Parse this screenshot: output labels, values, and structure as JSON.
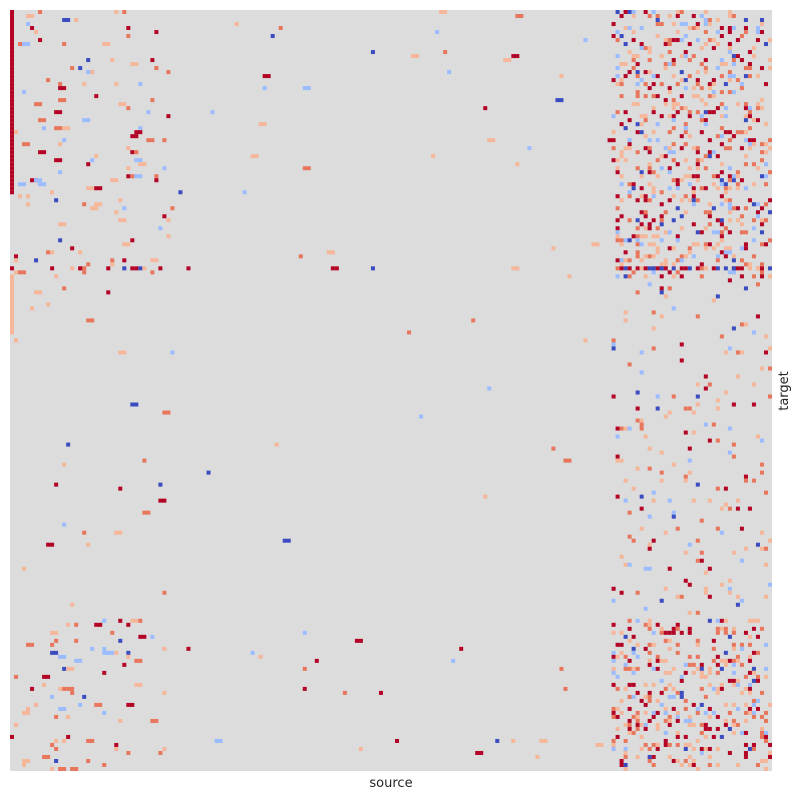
{
  "chart_data": {
    "type": "heatmap",
    "title": "",
    "xlabel": "source",
    "ylabel": "target",
    "colormap": "coolwarm",
    "background_color": "#dcdcdc",
    "colors": {
      "strong_negative": "#3b4cc0",
      "weak_negative": "#9bbcff",
      "weak_positive": "#f5b69a",
      "medium_positive": "#e8765c",
      "strong_positive": "#b40426"
    },
    "x_tick_labels": "none",
    "y_tick_labels": "none",
    "colorbar": "none",
    "grid": false,
    "rows": 190,
    "cols": 190,
    "value_range": [
      -1,
      1
    ],
    "structure": {
      "dense_right_band_source_fraction": [
        0.79,
        1.0
      ],
      "dense_row_fraction_ranges": [
        [
          0.0,
          0.35
        ],
        [
          0.8,
          1.0
        ]
      ],
      "strong_left_column_target_fraction": [
        0.0,
        0.24
      ],
      "strong_row_target_fraction": 0.34
    }
  }
}
